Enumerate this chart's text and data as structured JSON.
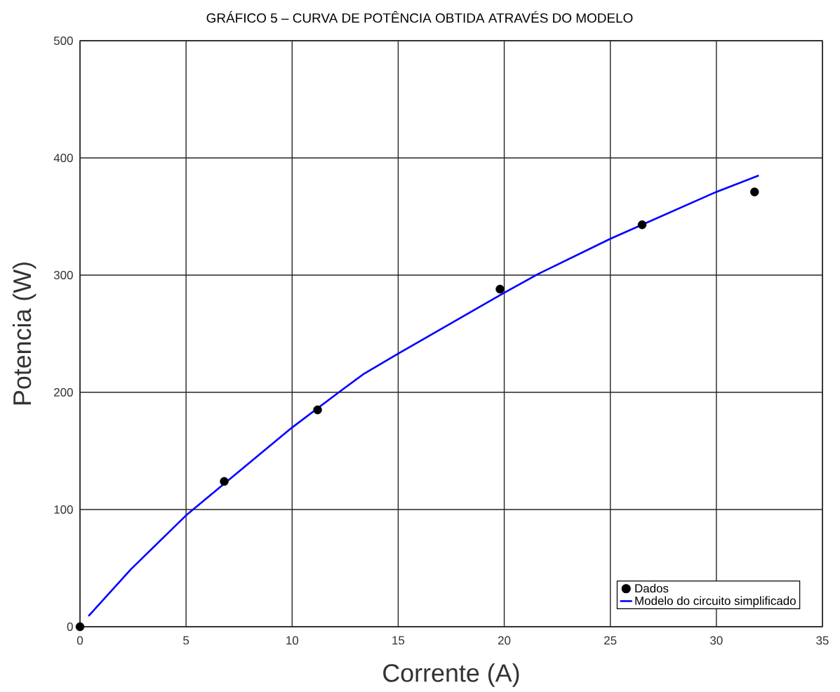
{
  "chart_data": {
    "type": "line",
    "title": "GRÁFICO 5 – CURVA DE POTÊNCIA OBTIDA ATRAVÉS DO MODELO",
    "xlabel": "Corrente (A)",
    "ylabel": "Potencia (W)",
    "xlim": [
      0,
      35
    ],
    "ylim": [
      0,
      500
    ],
    "xticks": [
      0,
      5,
      10,
      15,
      20,
      25,
      30,
      35
    ],
    "yticks": [
      0,
      100,
      200,
      300,
      400,
      500
    ],
    "grid": true,
    "legend": "bottom right",
    "series": [
      {
        "name": "Dados",
        "type": "scatter",
        "color": "#000000",
        "x": [
          0,
          6.8,
          11.2,
          19.8,
          26.5,
          31.8
        ],
        "values": [
          0,
          124,
          185,
          288,
          343,
          371
        ]
      },
      {
        "name": "Modelo do circuito simplificado",
        "color": "#0000ff",
        "x": [
          0.4,
          2.4,
          5,
          10,
          12.2,
          13.4,
          15,
          20,
          21.6,
          25,
          30,
          32
        ],
        "values": [
          9,
          49,
          95,
          170,
          200,
          216,
          233,
          285,
          301,
          331,
          371,
          385
        ]
      }
    ]
  }
}
